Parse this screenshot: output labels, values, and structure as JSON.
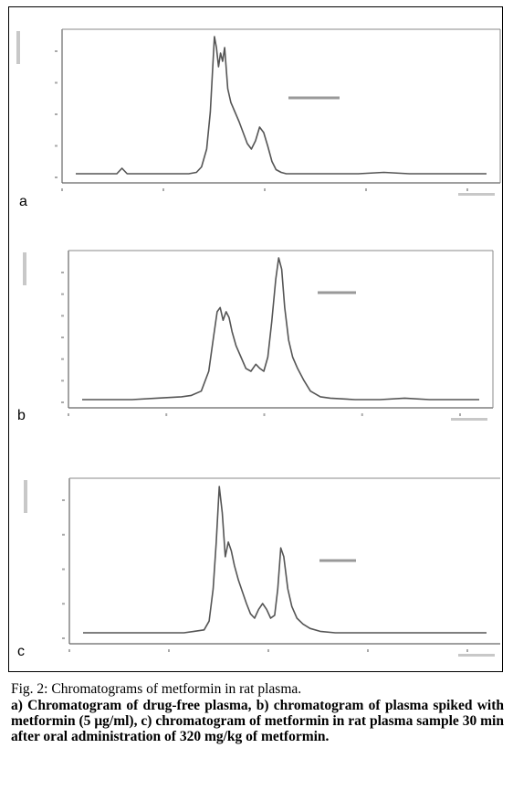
{
  "figure": {
    "caption_title": "Fig. 2: Chromatograms of metformin in rat plasma.",
    "caption_body": "a) Chromatogram of drug-free plasma, b) chromatogram of plasma spiked with metformin (5 μg/ml), c) chromatogram of metformin in rat plasma sample 30 min after oral administration of 320 mg/kg of metformin."
  },
  "chart_data": [
    {
      "type": "line",
      "panel_label": "a",
      "x": [
        0.0,
        0.8,
        0.9,
        1.0,
        1.5,
        2.0,
        2.2,
        2.35,
        2.45,
        2.55,
        2.62,
        2.66,
        2.7,
        2.74,
        2.78,
        2.82,
        2.86,
        2.9,
        2.96,
        3.02,
        3.1,
        3.18,
        3.26,
        3.34,
        3.42,
        3.5,
        3.58,
        3.66,
        3.74,
        3.82,
        3.9,
        4.0,
        4.1,
        4.3,
        4.6,
        5.0,
        5.5,
        6.0,
        6.5,
        7.0,
        7.5,
        8.0
      ],
      "y": [
        0,
        0,
        0.04,
        0,
        0,
        0,
        0,
        0.01,
        0.05,
        0.18,
        0.45,
        0.72,
        1.0,
        0.92,
        0.78,
        0.88,
        0.82,
        0.92,
        0.62,
        0.52,
        0.45,
        0.38,
        0.3,
        0.22,
        0.18,
        0.24,
        0.34,
        0.3,
        0.2,
        0.09,
        0.03,
        0.01,
        0,
        0,
        0,
        0,
        0,
        0.01,
        0,
        0,
        0,
        0
      ]
    },
    {
      "type": "line",
      "panel_label": "b",
      "x": [
        0.0,
        0.5,
        1.0,
        1.5,
        2.0,
        2.2,
        2.4,
        2.55,
        2.65,
        2.72,
        2.78,
        2.84,
        2.9,
        2.96,
        3.02,
        3.1,
        3.2,
        3.3,
        3.4,
        3.5,
        3.58,
        3.66,
        3.74,
        3.82,
        3.9,
        3.96,
        4.02,
        4.08,
        4.16,
        4.24,
        4.34,
        4.46,
        4.6,
        4.8,
        5.0,
        5.5,
        6.0,
        6.5,
        7.0,
        7.5,
        8.0
      ],
      "y": [
        0,
        0,
        0,
        0.01,
        0.02,
        0.03,
        0.06,
        0.2,
        0.45,
        0.62,
        0.65,
        0.56,
        0.62,
        0.58,
        0.48,
        0.38,
        0.3,
        0.22,
        0.2,
        0.25,
        0.22,
        0.2,
        0.3,
        0.55,
        0.85,
        1.0,
        0.92,
        0.65,
        0.42,
        0.3,
        0.22,
        0.14,
        0.06,
        0.02,
        0.01,
        0,
        0,
        0.01,
        0,
        0,
        0
      ]
    },
    {
      "type": "line",
      "panel_label": "c",
      "x": [
        0.0,
        0.5,
        1.0,
        1.5,
        2.0,
        2.2,
        2.4,
        2.5,
        2.58,
        2.64,
        2.7,
        2.76,
        2.82,
        2.88,
        2.94,
        3.0,
        3.08,
        3.16,
        3.24,
        3.32,
        3.4,
        3.48,
        3.56,
        3.64,
        3.72,
        3.8,
        3.86,
        3.92,
        3.98,
        4.06,
        4.14,
        4.24,
        4.36,
        4.5,
        4.7,
        5.0,
        5.5,
        6.0,
        6.5,
        7.0,
        7.5,
        8.0
      ],
      "y": [
        0,
        0,
        0,
        0,
        0,
        0.01,
        0.02,
        0.08,
        0.3,
        0.62,
        1.0,
        0.82,
        0.52,
        0.62,
        0.56,
        0.46,
        0.36,
        0.28,
        0.2,
        0.13,
        0.1,
        0.16,
        0.2,
        0.16,
        0.1,
        0.12,
        0.3,
        0.58,
        0.52,
        0.3,
        0.18,
        0.1,
        0.06,
        0.03,
        0.01,
        0,
        0,
        0,
        0,
        0,
        0,
        0
      ]
    }
  ]
}
